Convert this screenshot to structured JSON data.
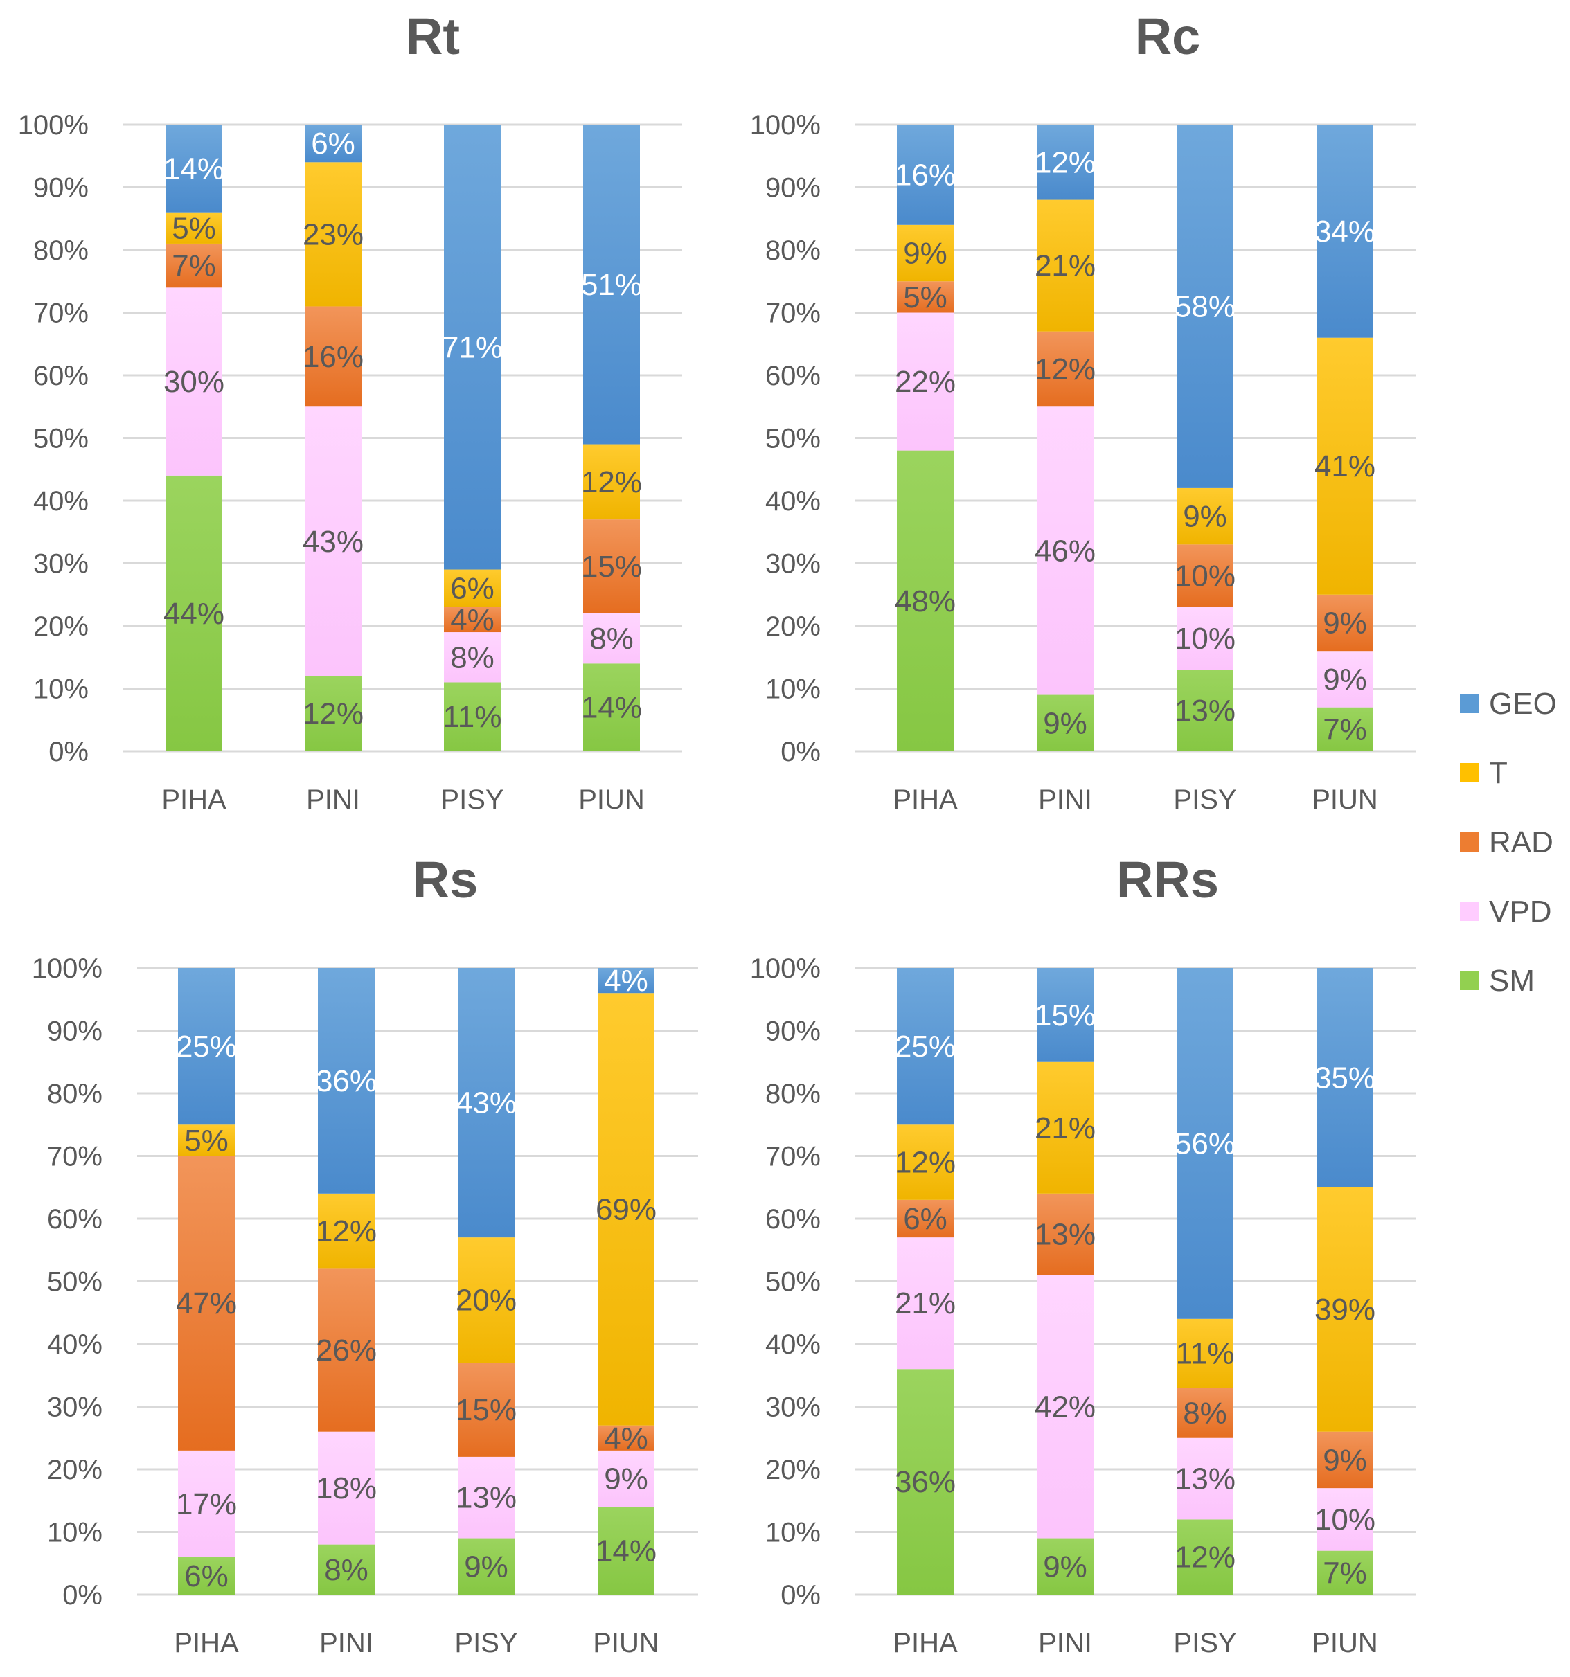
{
  "chart_data": [
    {
      "type": "bar",
      "stacked": true,
      "title": "Rt",
      "categories": [
        "PIHA",
        "PINI",
        "PISY",
        "PIUN"
      ],
      "ylim": [
        0,
        100
      ],
      "yticks": [
        "0%",
        "10%",
        "20%",
        "30%",
        "40%",
        "50%",
        "60%",
        "70%",
        "80%",
        "90%",
        "100%"
      ],
      "series": [
        {
          "name": "SM",
          "values": [
            44,
            12,
            11,
            14
          ],
          "labels": [
            "44%",
            "12%",
            "11%",
            "14%"
          ]
        },
        {
          "name": "VPD",
          "values": [
            30,
            43,
            8,
            8
          ],
          "labels": [
            "30%",
            "43%",
            "8%",
            "8%"
          ]
        },
        {
          "name": "RAD",
          "values": [
            7,
            16,
            4,
            15
          ],
          "labels": [
            "7%",
            "16%",
            "4%",
            "15%"
          ]
        },
        {
          "name": "T",
          "values": [
            5,
            23,
            6,
            12
          ],
          "labels": [
            "5%",
            "23%",
            "6%",
            "12%"
          ]
        },
        {
          "name": "GEO",
          "values": [
            14,
            6,
            71,
            51
          ],
          "labels": [
            "14%",
            "6%",
            "71%",
            "51%"
          ]
        }
      ]
    },
    {
      "type": "bar",
      "stacked": true,
      "title": "Rc",
      "categories": [
        "PIHA",
        "PINI",
        "PISY",
        "PIUN"
      ],
      "ylim": [
        0,
        100
      ],
      "yticks": [
        "0%",
        "10%",
        "20%",
        "30%",
        "40%",
        "50%",
        "60%",
        "70%",
        "80%",
        "90%",
        "100%"
      ],
      "series": [
        {
          "name": "SM",
          "values": [
            48,
            9,
            13,
            7
          ],
          "labels": [
            "48%",
            "9%",
            "13%",
            "7%"
          ]
        },
        {
          "name": "VPD",
          "values": [
            22,
            46,
            10,
            9
          ],
          "labels": [
            "22%",
            "46%",
            "10%",
            "9%"
          ]
        },
        {
          "name": "RAD",
          "values": [
            5,
            12,
            10,
            9
          ],
          "labels": [
            "5%",
            "12%",
            "10%",
            "9%"
          ]
        },
        {
          "name": "T",
          "values": [
            9,
            21,
            9,
            41
          ],
          "labels": [
            "9%",
            "21%",
            "9%",
            "41%"
          ]
        },
        {
          "name": "GEO",
          "values": [
            16,
            12,
            58,
            34
          ],
          "labels": [
            "16%",
            "12%",
            "58%",
            "34%"
          ]
        }
      ]
    },
    {
      "type": "bar",
      "stacked": true,
      "title": "Rs",
      "categories": [
        "PIHA",
        "PINI",
        "PISY",
        "PIUN"
      ],
      "ylim": [
        0,
        100
      ],
      "yticks": [
        "0%",
        "10%",
        "20%",
        "30%",
        "40%",
        "50%",
        "60%",
        "70%",
        "80%",
        "90%",
        "100%"
      ],
      "series": [
        {
          "name": "SM",
          "values": [
            6,
            8,
            9,
            14
          ],
          "labels": [
            "6%",
            "8%",
            "9%",
            "14%"
          ]
        },
        {
          "name": "VPD",
          "values": [
            17,
            18,
            13,
            9
          ],
          "labels": [
            "17%",
            "18%",
            "13%",
            "9%"
          ]
        },
        {
          "name": "RAD",
          "values": [
            47,
            26,
            15,
            4
          ],
          "labels": [
            "47%",
            "26%",
            "15%",
            "4%"
          ]
        },
        {
          "name": "T",
          "values": [
            5,
            12,
            20,
            69
          ],
          "labels": [
            "5%",
            "12%",
            "20%",
            "69%"
          ]
        },
        {
          "name": "GEO",
          "values": [
            25,
            36,
            43,
            4
          ],
          "labels": [
            "25%",
            "36%",
            "43%",
            "4%"
          ]
        }
      ]
    },
    {
      "type": "bar",
      "stacked": true,
      "title": "RRs",
      "categories": [
        "PIHA",
        "PINI",
        "PISY",
        "PIUN"
      ],
      "ylim": [
        0,
        100
      ],
      "yticks": [
        "0%",
        "10%",
        "20%",
        "30%",
        "40%",
        "50%",
        "60%",
        "70%",
        "80%",
        "90%",
        "100%"
      ],
      "series": [
        {
          "name": "SM",
          "values": [
            36,
            9,
            12,
            7
          ],
          "labels": [
            "36%",
            "9%",
            "12%",
            "7%"
          ]
        },
        {
          "name": "VPD",
          "values": [
            21,
            42,
            13,
            10
          ],
          "labels": [
            "21%",
            "42%",
            "13%",
            "10%"
          ]
        },
        {
          "name": "RAD",
          "values": [
            6,
            13,
            8,
            9
          ],
          "labels": [
            "6%",
            "13%",
            "8%",
            "9%"
          ]
        },
        {
          "name": "T",
          "values": [
            12,
            21,
            11,
            39
          ],
          "labels": [
            "12%",
            "21%",
            "11%",
            "39%"
          ]
        },
        {
          "name": "GEO",
          "values": [
            25,
            15,
            56,
            35
          ],
          "labels": [
            "25%",
            "15%",
            "56%",
            "35%"
          ]
        }
      ]
    }
  ],
  "legend": {
    "position": "right",
    "items": [
      {
        "name": "GEO",
        "color": "#5B9BD5"
      },
      {
        "name": "T",
        "color": "#FFC000"
      },
      {
        "name": "RAD",
        "color": "#ED7D31"
      },
      {
        "name": "VPD",
        "color": "#FFCCFF"
      },
      {
        "name": "SM",
        "color": "#92D050"
      }
    ]
  },
  "colors": {
    "SM": "#92D050",
    "VPD": "#FFCCFF",
    "RAD": "#ED7D31",
    "T": "#FFC000",
    "GEO": "#5B9BD5",
    "grid": "#D9D9D9",
    "axis_text": "#595959",
    "label_on_geo": "#FFFFFF",
    "label_on_others": "#595959"
  }
}
